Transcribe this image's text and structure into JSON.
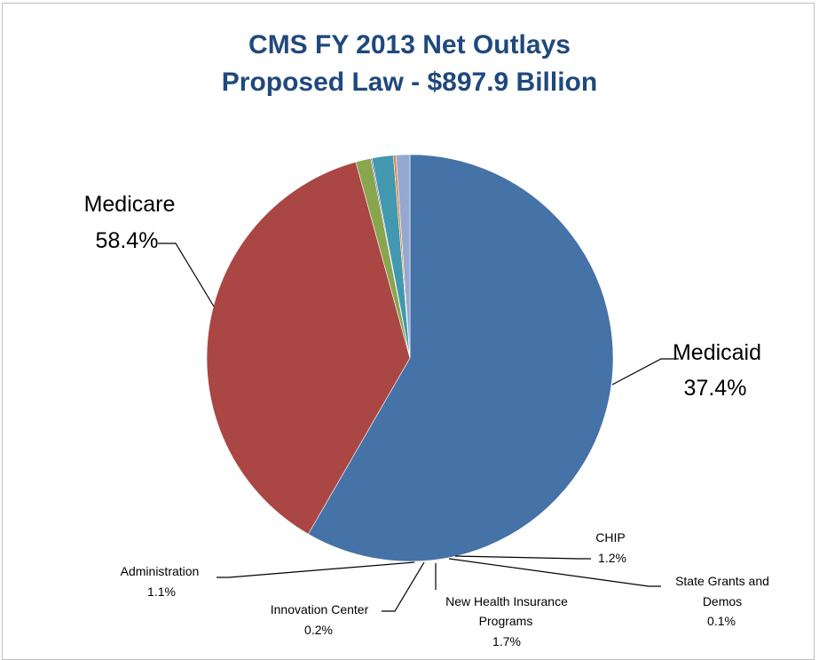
{
  "chart_data": {
    "type": "pie",
    "title_line1": "CMS FY 2013 Net Outlays",
    "title_line2": "Proposed Law - $897.9 Billion",
    "slices": [
      {
        "name": "Medicare",
        "percent": 58.4,
        "label": "58.4%",
        "color": "#4572a7"
      },
      {
        "name": "Medicaid",
        "percent": 37.4,
        "label": "37.4%",
        "color": "#aa4643"
      },
      {
        "name": "CHIP",
        "percent": 1.2,
        "label": "1.2%",
        "color": "#89a54e"
      },
      {
        "name": "State Grants and Demos",
        "name_lines": [
          "State Grants and",
          "Demos"
        ],
        "percent": 0.1,
        "label": "0.1%",
        "color": "#71588f"
      },
      {
        "name": "New Health Insurance Programs",
        "name_lines": [
          "New Health Insurance",
          "Programs"
        ],
        "percent": 1.7,
        "label": "1.7%",
        "color": "#4198af"
      },
      {
        "name": "Innovation Center",
        "percent": 0.2,
        "label": "0.2%",
        "color": "#db843d"
      },
      {
        "name": "Administration",
        "percent": 1.1,
        "label": "1.1%",
        "color": "#93a9cf"
      }
    ],
    "start_angle": "12 o'clock",
    "direction": "clockwise",
    "legend": "none"
  }
}
